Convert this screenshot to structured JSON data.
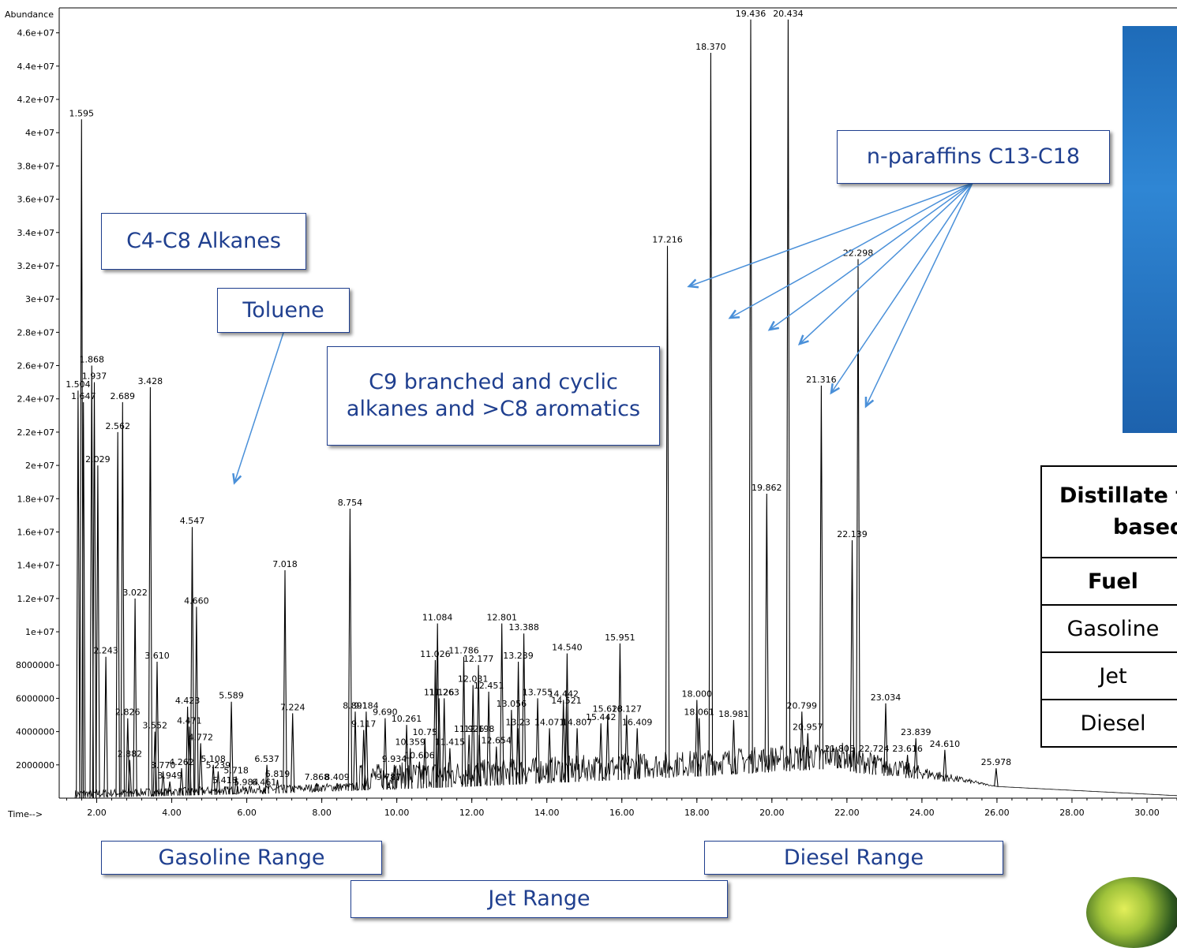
{
  "chart_data": {
    "type": "line",
    "title": "",
    "ylabel": "Abundance",
    "xlabel": "Time-->",
    "xlim": [
      1.0,
      30.8
    ],
    "ylim": [
      0,
      47500000
    ],
    "x_ticks": [
      2,
      4,
      6,
      8,
      10,
      12,
      14,
      16,
      18,
      20,
      22,
      24,
      26,
      28,
      30
    ],
    "x_tick_labels": [
      "2.00",
      "4.00",
      "6.00",
      "8.00",
      "10.00",
      "12.00",
      "14.00",
      "16.00",
      "18.00",
      "20.00",
      "22.00",
      "24.00",
      "26.00",
      "28.00",
      "30.00"
    ],
    "y_ticks": [
      2000000,
      4000000,
      6000000,
      8000000,
      10000000,
      12000000,
      14000000,
      16000000,
      18000000,
      20000000,
      22000000,
      24000000,
      26000000,
      28000000,
      30000000,
      32000000,
      34000000,
      36000000,
      38000000,
      40000000,
      42000000,
      44000000,
      46000000
    ],
    "y_tick_labels": [
      "2000000",
      "4000000",
      "6000000",
      "8000000",
      "1e+07",
      "1.2e+07",
      "1.4e+07",
      "1.6e+07",
      "1.8e+07",
      "2e+07",
      "2.2e+07",
      "2.4e+07",
      "2.6e+07",
      "2.8e+07",
      "3e+07",
      "3.2e+07",
      "3.4e+07",
      "3.6e+07",
      "3.8e+07",
      "4e+07",
      "4.2e+07",
      "4.4e+07",
      "4.6e+07"
    ],
    "baseline": [
      [
        1.4,
        0
      ],
      [
        7.0,
        300000
      ],
      [
        12.0,
        700000
      ],
      [
        18.0,
        1300000
      ],
      [
        21.8,
        1800000
      ],
      [
        22.3,
        1500000
      ],
      [
        26.0,
        700000
      ],
      [
        30.8,
        150000
      ]
    ],
    "series": [
      {
        "values": [
          {
            "x": 1.504,
            "y": 24500000,
            "label": "1.504"
          },
          {
            "x": 1.595,
            "y": 40800000,
            "label": "1.595"
          },
          {
            "x": 1.647,
            "y": 23800000,
            "label": "1.647"
          },
          {
            "x": 1.868,
            "y": 26000000,
            "label": "1.868"
          },
          {
            "x": 1.937,
            "y": 25000000,
            "label": "1.937"
          },
          {
            "x": 2.029,
            "y": 20000000,
            "label": "2.029"
          },
          {
            "x": 2.243,
            "y": 8500000,
            "label": "2.243"
          },
          {
            "x": 2.562,
            "y": 22000000,
            "label": "2.562"
          },
          {
            "x": 2.689,
            "y": 23800000,
            "label": "2.689"
          },
          {
            "x": 2.826,
            "y": 4800000,
            "label": "2.826"
          },
          {
            "x": 2.882,
            "y": 2300000,
            "label": "2.882"
          },
          {
            "x": 3.022,
            "y": 12000000,
            "label": "3.022"
          },
          {
            "x": 3.428,
            "y": 24700000,
            "label": "3.428"
          },
          {
            "x": 3.552,
            "y": 4000000,
            "label": "3.552"
          },
          {
            "x": 3.61,
            "y": 8200000,
            "label": "3.610"
          },
          {
            "x": 3.77,
            "y": 1600000,
            "label": "3.770"
          },
          {
            "x": 3.949,
            "y": 1000000,
            "label": "3.949"
          },
          {
            "x": 4.262,
            "y": 1800000,
            "label": "4.262"
          },
          {
            "x": 4.423,
            "y": 5500000,
            "label": "4.423"
          },
          {
            "x": 4.471,
            "y": 4300000,
            "label": "4.471"
          },
          {
            "x": 4.547,
            "y": 16300000,
            "label": "4.547"
          },
          {
            "x": 4.66,
            "y": 11500000,
            "label": "4.660"
          },
          {
            "x": 4.772,
            "y": 3300000,
            "label": "4.772"
          },
          {
            "x": 5.108,
            "y": 2000000,
            "label": "5.108"
          },
          {
            "x": 5.239,
            "y": 1600000,
            "label": "5.239"
          },
          {
            "x": 5.416,
            "y": 700000,
            "label": "5.416"
          },
          {
            "x": 5.589,
            "y": 5800000,
            "label": "5.589"
          },
          {
            "x": 5.718,
            "y": 1300000,
            "label": "5.718"
          },
          {
            "x": 5.984,
            "y": 600000,
            "label": "5.984"
          },
          {
            "x": 6.461,
            "y": 600000,
            "label": "6.461"
          },
          {
            "x": 6.537,
            "y": 2000000,
            "label": "6.537"
          },
          {
            "x": 6.819,
            "y": 1100000,
            "label": "6.819"
          },
          {
            "x": 7.018,
            "y": 13700000,
            "label": "7.018"
          },
          {
            "x": 7.224,
            "y": 5100000,
            "label": "7.224"
          },
          {
            "x": 7.868,
            "y": 900000,
            "label": "7.868"
          },
          {
            "x": 8.409,
            "y": 900000,
            "label": "8.409"
          },
          {
            "x": 8.754,
            "y": 17400000,
            "label": "8.754"
          },
          {
            "x": 8.891,
            "y": 5200000,
            "label": "8.891"
          },
          {
            "x": 9.117,
            "y": 4100000,
            "label": "9.117"
          },
          {
            "x": 9.184,
            "y": 5200000,
            "label": "9.184"
          },
          {
            "x": 9.69,
            "y": 4800000,
            "label": "9.690"
          },
          {
            "x": 9.787,
            "y": 900000,
            "label": "9.787"
          },
          {
            "x": 9.934,
            "y": 2000000,
            "label": "9.934"
          },
          {
            "x": 10.261,
            "y": 4400000,
            "label": "10.261"
          },
          {
            "x": 10.359,
            "y": 3000000,
            "label": "10.359"
          },
          {
            "x": 10.606,
            "y": 2200000,
            "label": "10.606"
          },
          {
            "x": 10.75,
            "y": 3600000,
            "label": "10.75"
          },
          {
            "x": 11.026,
            "y": 8300000,
            "label": "11.026"
          },
          {
            "x": 11.084,
            "y": 10500000,
            "label": "11.084"
          },
          {
            "x": 11.126,
            "y": 6000000,
            "label": "11.126"
          },
          {
            "x": 11.263,
            "y": 6000000,
            "label": "11.263"
          },
          {
            "x": 11.415,
            "y": 3000000,
            "label": "11.415"
          },
          {
            "x": 11.786,
            "y": 8500000,
            "label": "11.786"
          },
          {
            "x": 11.926,
            "y": 3800000,
            "label": "11.926"
          },
          {
            "x": 12.031,
            "y": 6800000,
            "label": "12.031"
          },
          {
            "x": 12.177,
            "y": 8000000,
            "label": "12.177"
          },
          {
            "x": 12.198,
            "y": 3800000,
            "label": "12.198"
          },
          {
            "x": 12.451,
            "y": 6400000,
            "label": "12.451"
          },
          {
            "x": 12.654,
            "y": 3100000,
            "label": "12.654"
          },
          {
            "x": 12.801,
            "y": 10500000,
            "label": "12.801"
          },
          {
            "x": 13.056,
            "y": 5300000,
            "label": "13.056"
          },
          {
            "x": 13.23,
            "y": 4200000,
            "label": "13.23"
          },
          {
            "x": 13.239,
            "y": 8200000,
            "label": "13.239"
          },
          {
            "x": 13.388,
            "y": 9900000,
            "label": "13.388"
          },
          {
            "x": 13.755,
            "y": 6000000,
            "label": "13.755"
          },
          {
            "x": 14.071,
            "y": 4200000,
            "label": "14.071"
          },
          {
            "x": 14.442,
            "y": 5900000,
            "label": "14.442"
          },
          {
            "x": 14.521,
            "y": 5500000,
            "label": "14.521"
          },
          {
            "x": 14.54,
            "y": 8700000,
            "label": "14.540"
          },
          {
            "x": 14.807,
            "y": 4200000,
            "label": "14.807"
          },
          {
            "x": 15.442,
            "y": 4500000,
            "label": "15.442"
          },
          {
            "x": 15.623,
            "y": 5000000,
            "label": "15.623"
          },
          {
            "x": 15.951,
            "y": 9300000,
            "label": "15.951"
          },
          {
            "x": 16.127,
            "y": 5000000,
            "label": "16.127"
          },
          {
            "x": 16.409,
            "y": 4200000,
            "label": "16.409"
          },
          {
            "x": 17.216,
            "y": 33200000,
            "label": "17.216"
          },
          {
            "x": 18.0,
            "y": 5900000,
            "label": "18.000"
          },
          {
            "x": 18.061,
            "y": 4800000,
            "label": "18.061"
          },
          {
            "x": 18.37,
            "y": 44800000,
            "label": "18.370"
          },
          {
            "x": 18.981,
            "y": 4700000,
            "label": "18.981"
          },
          {
            "x": 19.436,
            "y": 46800000,
            "label": "19.436"
          },
          {
            "x": 19.862,
            "y": 18300000,
            "label": "19.862"
          },
          {
            "x": 20.434,
            "y": 46800000,
            "label": "20.434"
          },
          {
            "x": 20.799,
            "y": 5200000,
            "label": "20.799"
          },
          {
            "x": 20.957,
            "y": 3900000,
            "label": "20.957"
          },
          {
            "x": 21.316,
            "y": 24800000,
            "label": "21.316"
          },
          {
            "x": 21.805,
            "y": 2600000,
            "label": "21.805"
          },
          {
            "x": 22.139,
            "y": 15500000,
            "label": "22.139"
          },
          {
            "x": 22.298,
            "y": 32400000,
            "label": "22.298"
          },
          {
            "x": 22.724,
            "y": 2600000,
            "label": "22.724"
          },
          {
            "x": 23.034,
            "y": 5700000,
            "label": "23.034"
          },
          {
            "x": 23.616,
            "y": 2600000,
            "label": "23.616"
          },
          {
            "x": 23.839,
            "y": 3600000,
            "label": "23.839"
          },
          {
            "x": 24.61,
            "y": 2900000,
            "label": "24.610"
          },
          {
            "x": 25.978,
            "y": 1800000,
            "label": "25.978"
          }
        ]
      }
    ]
  },
  "annotations": {
    "c4c8": "C4-C8 Alkanes",
    "toluene": "Toluene",
    "c9_line1": "C9 branched and cyclic",
    "c9_line2": "alkanes and >C8 aromatics",
    "nparaffins": "n-paraffins C13-C18",
    "gasoline_range": "Gasoline Range",
    "jet_range": "Jet Range",
    "diesel_range": "Diesel Range"
  },
  "table": {
    "title_line1": "Distillate t",
    "title_line2": "based",
    "header": "Fuel",
    "rows": [
      "Gasoline",
      "Jet",
      "Diesel"
    ]
  },
  "colors": {
    "trace": "#000000",
    "callout_border": "#1f3f8f",
    "callout_text": "#1f3f8f",
    "arrow": "#4a90d9",
    "photo_blue": "#2878c8"
  }
}
